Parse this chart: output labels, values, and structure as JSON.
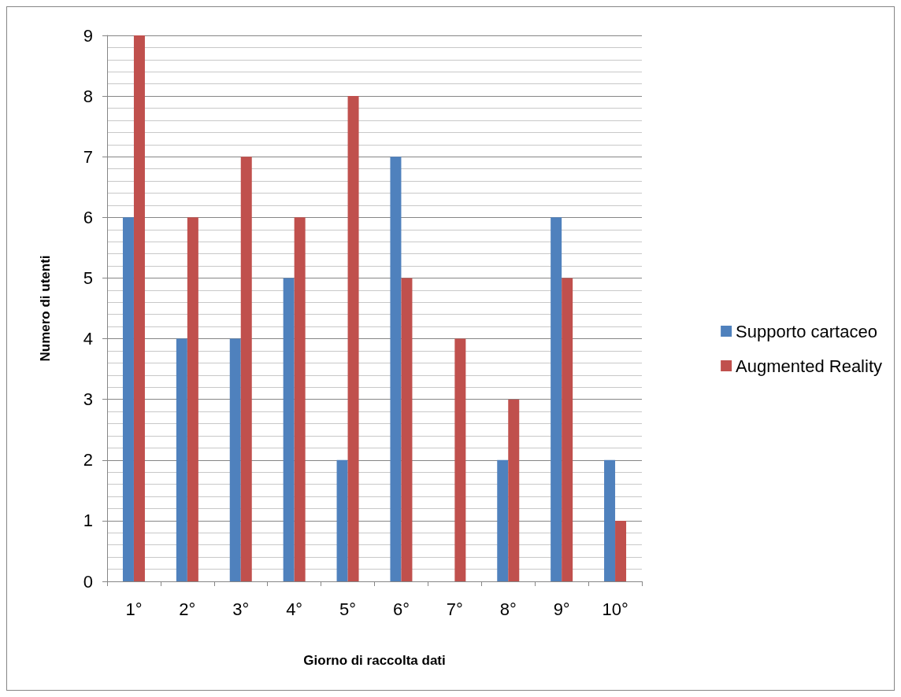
{
  "chart_data": {
    "type": "bar",
    "xlabel": "Giorno di raccolta dati",
    "ylabel": "Numero di utenti",
    "categories": [
      "1°",
      "2°",
      "3°",
      "4°",
      "5°",
      "6°",
      "7°",
      "8°",
      "9°",
      "10°"
    ],
    "series": [
      {
        "name": "Supporto cartaceo",
        "color": "#4f81bd",
        "values": [
          6,
          4,
          4,
          5,
          2,
          7,
          0,
          2,
          6,
          2
        ]
      },
      {
        "name": "Augmented Reality",
        "color": "#c0504d",
        "values": [
          9,
          6,
          7,
          6,
          8,
          5,
          4,
          3,
          5,
          1
        ]
      }
    ],
    "ylim": [
      0,
      9
    ],
    "yticks": [
      0,
      1,
      2,
      3,
      4,
      5,
      6,
      7,
      8,
      9
    ],
    "grid": true,
    "legend": "right"
  }
}
